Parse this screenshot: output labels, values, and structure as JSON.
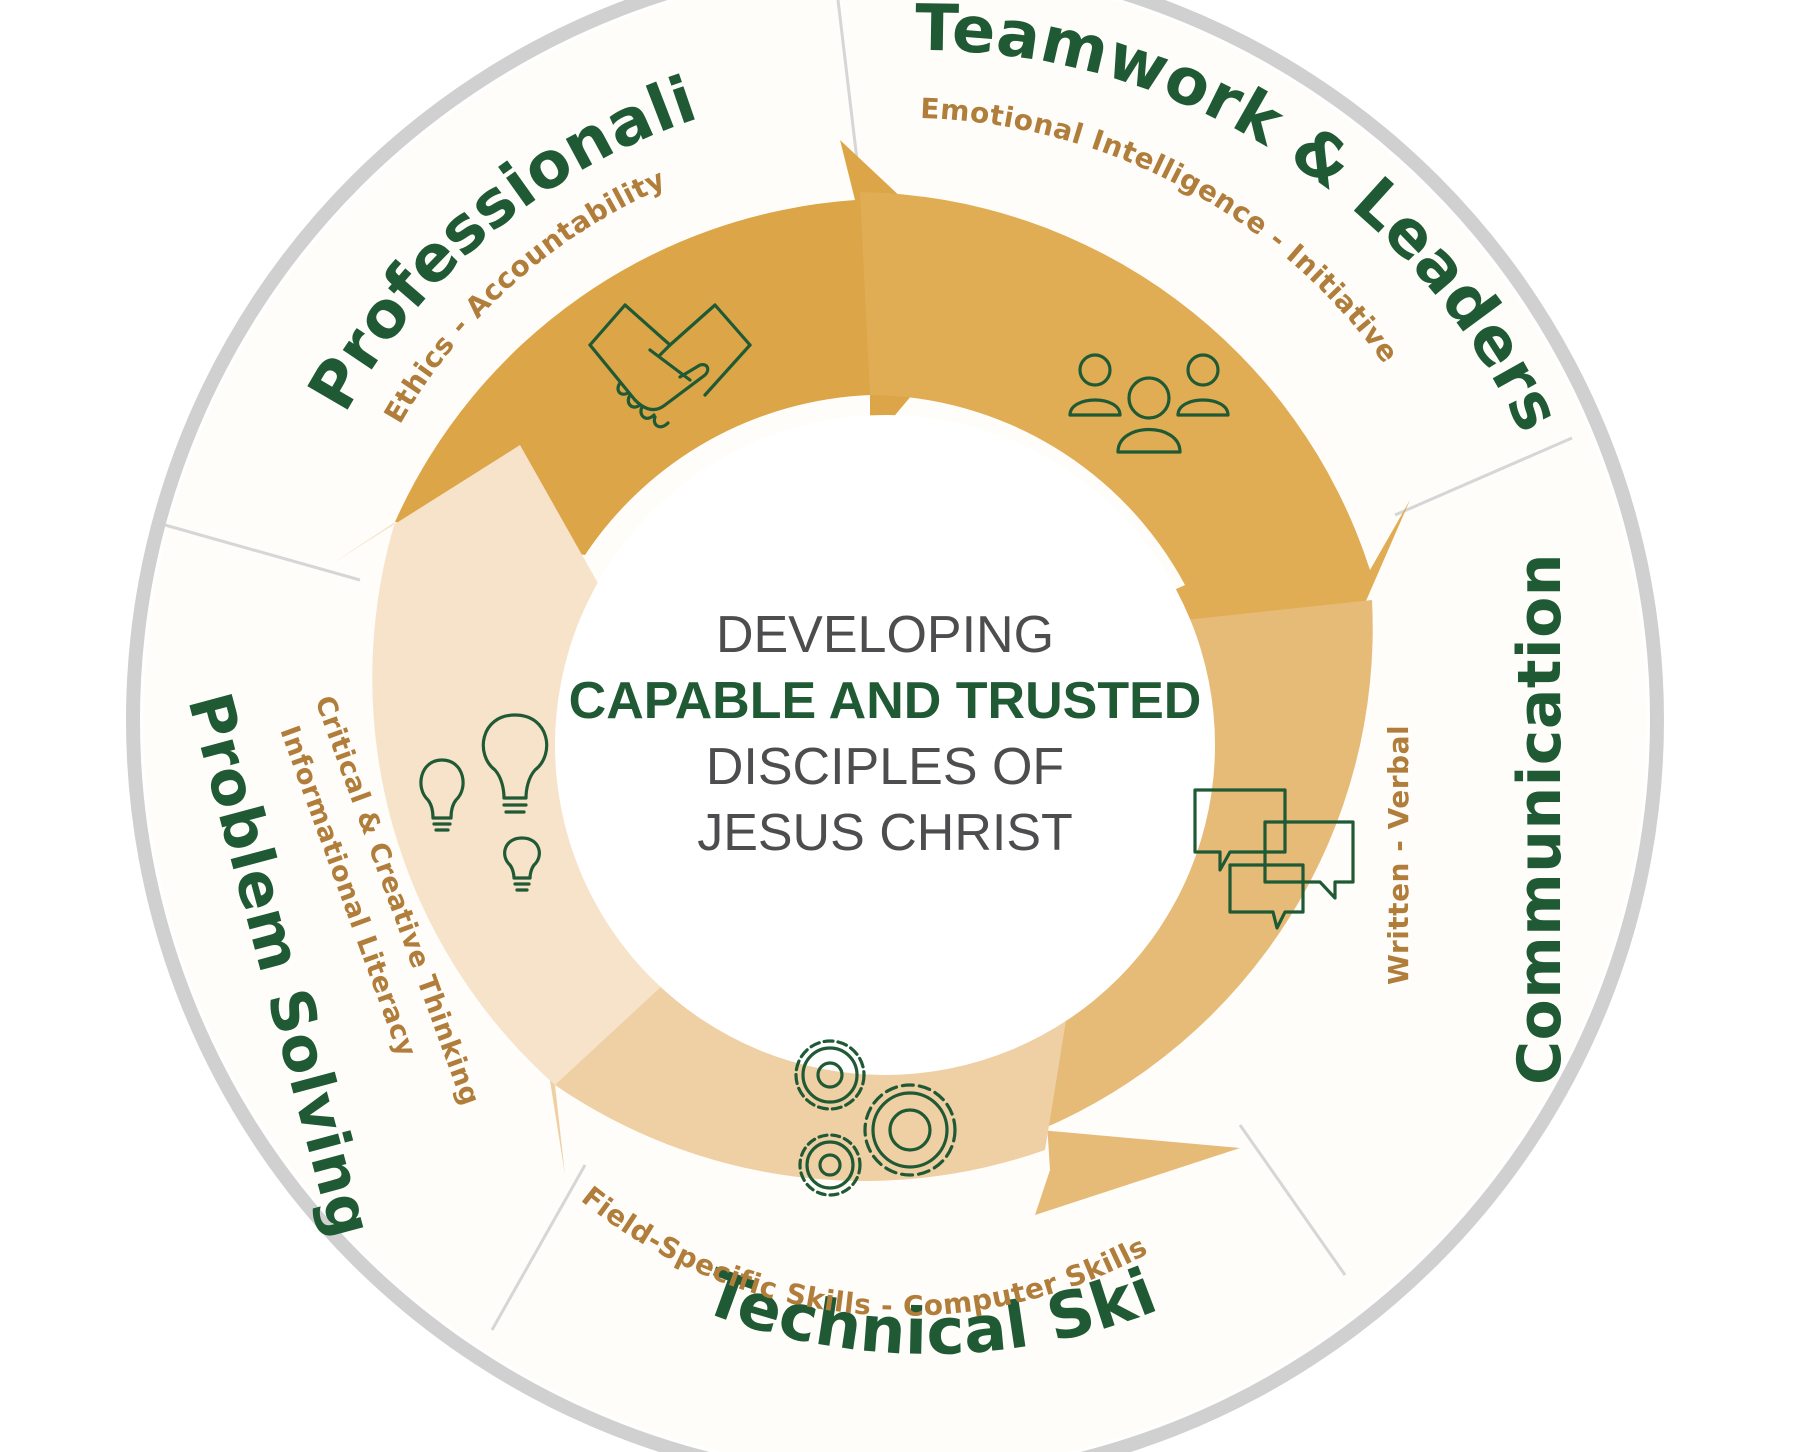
{
  "center": {
    "line1": "DEVELOPING",
    "line2": "CAPABLE AND TRUSTED",
    "line3": "DISCIPLES OF",
    "line4": "JESUS CHRIST"
  },
  "segments": [
    {
      "id": "professionalism",
      "title": "Professionalism",
      "subtitle": "Ethics - Accountability",
      "icon": "handshake-icon"
    },
    {
      "id": "teamwork",
      "title": "Teamwork & Leadership",
      "subtitle": "Emotional Intelligence - Initiative",
      "icon": "people-group-icon"
    },
    {
      "id": "communication",
      "title": "Communication",
      "subtitle": "Written - Verbal",
      "icon": "speech-bubbles-icon"
    },
    {
      "id": "technical",
      "title": "Technical Skills",
      "subtitle": "Field-Specific Skills - Computer Skills",
      "icon": "gears-icon"
    },
    {
      "id": "problem",
      "title": "Problem Solving",
      "subtitle_line1": "Critical & Creative Thinking",
      "subtitle_line2": "Informational Literacy",
      "icon": "light-bulbs-icon"
    }
  ],
  "colors": {
    "title_green": "#1f5a35",
    "subtitle_gold": "#b07d3b",
    "arrow_dark": "#dca548",
    "arrow_mid": "#e3b46b",
    "arrow_light": "#ecc996",
    "arrow_pale": "#f5e2c8",
    "ring_gray": "#d0d0d0"
  }
}
